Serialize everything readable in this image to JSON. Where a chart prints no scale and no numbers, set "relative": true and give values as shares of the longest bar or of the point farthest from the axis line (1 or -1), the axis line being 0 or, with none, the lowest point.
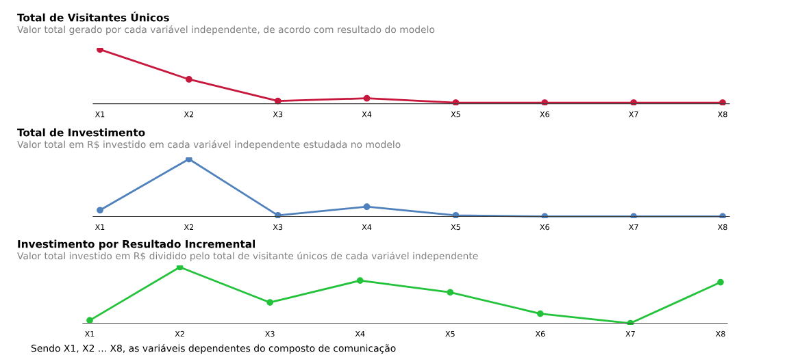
{
  "chart_data": [
    {
      "type": "line",
      "title": "Total de Visitantes Únicos",
      "subtitle": "Valor total gerado por cada variável independente, de acordo com resultado do modelo",
      "relative": true,
      "marker": "circle",
      "categories": [
        "X1",
        "X2",
        "X3",
        "X4",
        "X5",
        "X6",
        "X7",
        "X8"
      ],
      "series": [
        {
          "color": "#c8173c",
          "values": [
            1,
            0.45,
            0.05,
            0.1,
            0.02,
            0.02,
            0.02,
            0.02
          ]
        }
      ]
    },
    {
      "type": "line",
      "title": "Total de Investimento",
      "subtitle": "Valor total em R$ investido em cada variável independente estudada no modelo",
      "relative": true,
      "marker": "circle",
      "categories": [
        "X1",
        "X2",
        "X3",
        "X4",
        "X5",
        "X6",
        "X7",
        "X8"
      ],
      "series": [
        {
          "color": "#4f81bd",
          "values": [
            0.11,
            1,
            0.02,
            0.17,
            0.02,
            0,
            0,
            0
          ]
        }
      ]
    },
    {
      "type": "line",
      "title": "Investimento por Resultado Incremental",
      "subtitle": "Valor total investido em R$ dividido pelo total de visitante únicos de cada variável independente",
      "relative": true,
      "marker": "circle",
      "categories": [
        "X1",
        "X2",
        "X3",
        "X4",
        "X5",
        "X6",
        "X7",
        "X8"
      ],
      "series": [
        {
          "color": "#22c33a",
          "values": [
            0.05,
            1,
            0.37,
            0.76,
            0.55,
            0.17,
            0,
            0.73
          ]
        }
      ],
      "annotations": [
        "Sendo X1, X2 ... X8, as variáveis dependentes do composto de comunicação"
      ]
    }
  ]
}
